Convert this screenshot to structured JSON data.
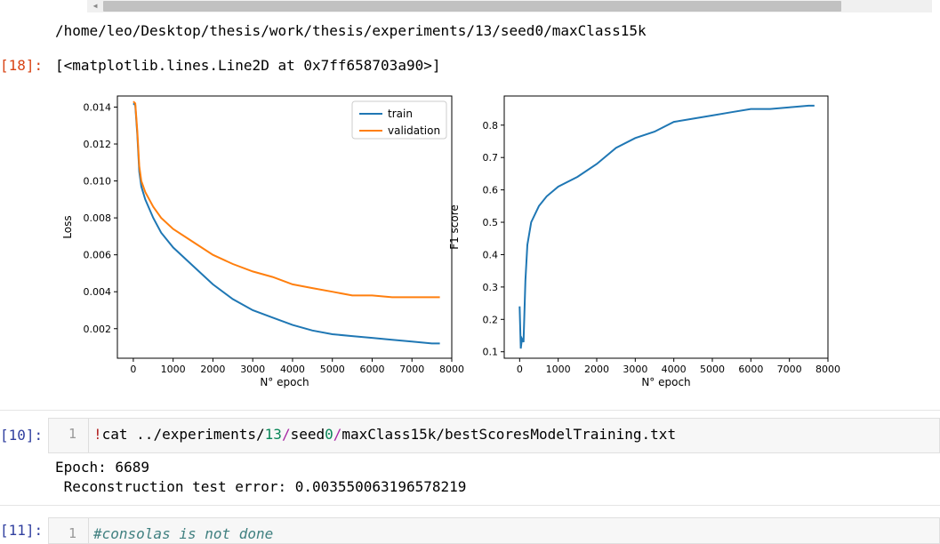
{
  "output_path": "/home/leo/Desktop/thesis/work/thesis/experiments/13/seed0/maxClass15k",
  "cell18": {
    "prompt": "[18]:",
    "repr": "[<matplotlib.lines.Line2D at 0x7ff658703a90>]"
  },
  "chart_data": [
    {
      "type": "line",
      "title": "",
      "xlabel": "N° epoch",
      "ylabel": "Loss",
      "xlim": [
        -400,
        8000
      ],
      "ylim": [
        0.0004,
        0.0146
      ],
      "xticks": [
        0,
        1000,
        2000,
        3000,
        4000,
        5000,
        6000,
        7000,
        8000
      ],
      "yticks": [
        0.002,
        0.004,
        0.006,
        0.008,
        0.01,
        0.012,
        0.014
      ],
      "ytick_labels": [
        "0.002",
        "0.004",
        "0.006",
        "0.008",
        "0.010",
        "0.012",
        "0.014"
      ],
      "legend": "upper-right",
      "grid": false,
      "series": [
        {
          "name": "train",
          "color": "#1f77b4",
          "x": [
            0,
            50,
            100,
            150,
            200,
            300,
            500,
            700,
            1000,
            1500,
            2000,
            2500,
            3000,
            3500,
            4000,
            4500,
            5000,
            5500,
            6000,
            6500,
            7000,
            7500,
            7700
          ],
          "y": [
            0.0142,
            0.0141,
            0.0125,
            0.0105,
            0.0097,
            0.009,
            0.008,
            0.0072,
            0.0064,
            0.0054,
            0.0044,
            0.0036,
            0.003,
            0.0026,
            0.0022,
            0.0019,
            0.0017,
            0.0016,
            0.0015,
            0.0014,
            0.0013,
            0.0012,
            0.0012
          ]
        },
        {
          "name": "validation",
          "color": "#ff7f0e",
          "x": [
            0,
            50,
            100,
            150,
            200,
            300,
            500,
            700,
            1000,
            1500,
            2000,
            2500,
            3000,
            3500,
            4000,
            4500,
            5000,
            5500,
            6000,
            6500,
            7000,
            7500,
            7700
          ],
          "y": [
            0.0143,
            0.0142,
            0.0127,
            0.0108,
            0.01,
            0.0094,
            0.0086,
            0.008,
            0.0074,
            0.0067,
            0.006,
            0.0055,
            0.0051,
            0.0048,
            0.0044,
            0.0042,
            0.004,
            0.0038,
            0.0038,
            0.0037,
            0.0037,
            0.0037,
            0.0037
          ]
        }
      ]
    },
    {
      "type": "line",
      "title": "",
      "xlabel": "N° epoch",
      "ylabel": "F1 score",
      "xlim": [
        -400,
        8000
      ],
      "ylim": [
        0.08,
        0.89
      ],
      "xticks": [
        0,
        1000,
        2000,
        3000,
        4000,
        5000,
        6000,
        7000,
        8000
      ],
      "yticks": [
        0.1,
        0.2,
        0.3,
        0.4,
        0.5,
        0.6,
        0.7,
        0.8
      ],
      "ytick_labels": [
        "0.1",
        "0.2",
        "0.3",
        "0.4",
        "0.5",
        "0.6",
        "0.7",
        "0.8"
      ],
      "grid": false,
      "series": [
        {
          "color": "#1f77b4",
          "x": [
            0,
            30,
            60,
            100,
            150,
            200,
            300,
            500,
            700,
            1000,
            1500,
            2000,
            2500,
            3000,
            3500,
            4000,
            4500,
            5000,
            5500,
            6000,
            6500,
            7000,
            7500,
            7650
          ],
          "y": [
            0.24,
            0.11,
            0.14,
            0.13,
            0.32,
            0.43,
            0.5,
            0.55,
            0.58,
            0.61,
            0.64,
            0.68,
            0.73,
            0.76,
            0.78,
            0.81,
            0.82,
            0.83,
            0.84,
            0.85,
            0.85,
            0.855,
            0.86,
            0.86
          ]
        }
      ]
    }
  ],
  "cell10": {
    "prompt": "[10]:",
    "line_number": "1",
    "code": {
      "bang": "!",
      "cmd": "cat ../experiments/",
      "num1": "13",
      "slash1": "/",
      "seed": "seed",
      "num2": "0",
      "slash2": "/",
      "rest": "maxClass15k/bestScoresModelTraining.txt"
    },
    "output_line1": "Epoch: 6689",
    "output_line2": " Reconstruction test error: 0.003550063196578219"
  },
  "cell11": {
    "prompt": "[11]:",
    "line_number": "1",
    "code": "#consolas is not done"
  }
}
